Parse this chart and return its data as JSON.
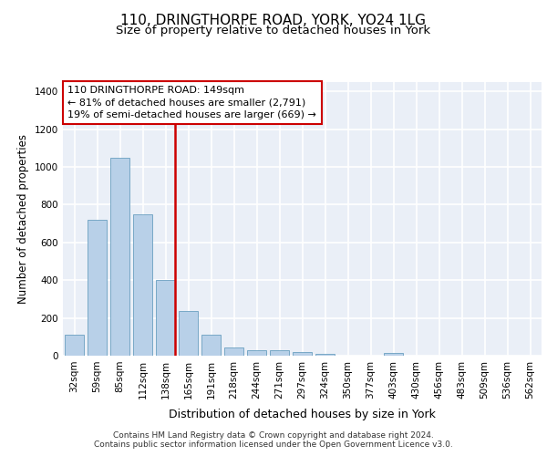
{
  "title_line1": "110, DRINGTHORPE ROAD, YORK, YO24 1LG",
  "title_line2": "Size of property relative to detached houses in York",
  "xlabel": "Distribution of detached houses by size in York",
  "ylabel": "Number of detached properties",
  "categories": [
    "32sqm",
    "59sqm",
    "85sqm",
    "112sqm",
    "138sqm",
    "165sqm",
    "191sqm",
    "218sqm",
    "244sqm",
    "271sqm",
    "297sqm",
    "324sqm",
    "350sqm",
    "377sqm",
    "403sqm",
    "430sqm",
    "456sqm",
    "483sqm",
    "509sqm",
    "536sqm",
    "562sqm"
  ],
  "values": [
    110,
    720,
    1050,
    750,
    400,
    235,
    110,
    45,
    28,
    28,
    20,
    10,
    0,
    0,
    15,
    0,
    0,
    0,
    0,
    0,
    0
  ],
  "bar_color": "#b8d0e8",
  "bar_edge_color": "#6a9fc0",
  "vline_color": "#cc0000",
  "annotation_line1": "110 DRINGTHORPE ROAD: 149sqm",
  "annotation_line2": "← 81% of detached houses are smaller (2,791)",
  "annotation_line3": "19% of semi-detached houses are larger (669) →",
  "annotation_box_color": "#ffffff",
  "annotation_box_edge": "#cc0000",
  "ylim": [
    0,
    1450
  ],
  "yticks": [
    0,
    200,
    400,
    600,
    800,
    1000,
    1200,
    1400
  ],
  "footer_line1": "Contains HM Land Registry data © Crown copyright and database right 2024.",
  "footer_line2": "Contains public sector information licensed under the Open Government Licence v3.0.",
  "bg_color": "#eaeff7",
  "grid_color": "#ffffff",
  "title_fontsize": 11,
  "subtitle_fontsize": 9.5,
  "ylabel_fontsize": 8.5,
  "xlabel_fontsize": 9,
  "tick_fontsize": 7.5,
  "annotation_fontsize": 8,
  "footer_fontsize": 6.5
}
